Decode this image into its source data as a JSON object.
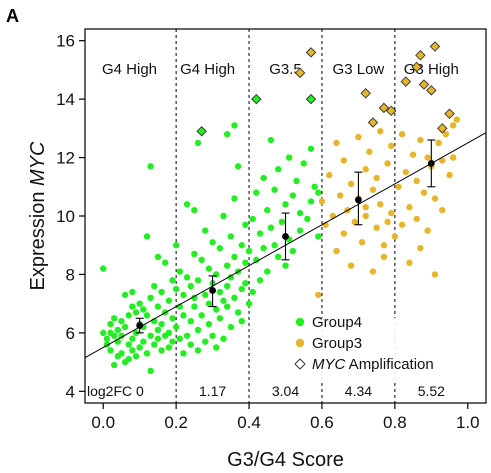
{
  "panel_label": "A",
  "chart_data": {
    "type": "scatter",
    "xlabel": "G3/G4 Score",
    "ylabel_prefix": "Expression ",
    "ylabel_gene": "MYC",
    "xlim": [
      -0.05,
      1.05
    ],
    "ylim": [
      3.6,
      16.4
    ],
    "x_ticks": [
      0.0,
      0.2,
      0.4,
      0.6,
      0.8,
      1.0
    ],
    "x_tick_labels": [
      "0.0",
      "0.2",
      "0.4",
      "0.6",
      "0.8",
      "1.0"
    ],
    "y_ticks": [
      4,
      6,
      8,
      10,
      12,
      14,
      16
    ],
    "y_tick_labels": [
      "4",
      "6",
      "8",
      "10",
      "12",
      "14",
      "16"
    ],
    "dividers": [
      0.2,
      0.4,
      0.6,
      0.8
    ],
    "regions": [
      {
        "label": "G4 High",
        "x": 0.05
      },
      {
        "label": "G4 High",
        "x": 0.2
      },
      {
        "label": "G3.5",
        "x": 0.5
      },
      {
        "label": "G3 Low",
        "x": 0.7
      },
      {
        "label": "G3 High",
        "x": 0.88
      }
    ],
    "log2fc": [
      {
        "label": "log2FC 0",
        "x": 0.1
      },
      {
        "label": "1.17",
        "x": 0.3
      },
      {
        "label": "3.04",
        "x": 0.5
      },
      {
        "label": "4.34",
        "x": 0.7
      },
      {
        "label": "5.52",
        "x": 0.9
      }
    ],
    "fit_line": {
      "x": [
        -0.05,
        1.05
      ],
      "y": [
        5.15,
        12.85
      ]
    },
    "mean_sd": [
      {
        "x": 0.1,
        "mean": 6.25,
        "lo": 6.0,
        "hi": 6.5
      },
      {
        "x": 0.3,
        "mean": 7.45,
        "lo": 6.9,
        "hi": 7.95
      },
      {
        "x": 0.5,
        "mean": 9.3,
        "lo": 8.5,
        "hi": 10.1
      },
      {
        "x": 0.7,
        "mean": 10.55,
        "lo": 9.7,
        "hi": 11.5
      },
      {
        "x": 0.9,
        "mean": 11.8,
        "lo": 11.0,
        "hi": 12.6
      }
    ],
    "legend": [
      {
        "label": "Group4",
        "color": "#22ee22",
        "kind": "dot"
      },
      {
        "label": "Group3",
        "color": "#e6b52a",
        "kind": "dot"
      },
      {
        "label_italic": "MYC",
        "label_rest": " Amplification",
        "kind": "diamond"
      }
    ],
    "series": [
      {
        "name": "Group4",
        "color": "#22ee22",
        "points": [
          [
            0.0,
            8.2
          ],
          [
            0.0,
            6.0
          ],
          [
            0.01,
            5.6
          ],
          [
            0.01,
            5.8
          ],
          [
            0.02,
            6.3
          ],
          [
            0.02,
            5.4
          ],
          [
            0.02,
            6.0
          ],
          [
            0.03,
            5.9
          ],
          [
            0.03,
            6.5
          ],
          [
            0.03,
            4.9
          ],
          [
            0.04,
            5.2
          ],
          [
            0.04,
            6.1
          ],
          [
            0.04,
            5.7
          ],
          [
            0.05,
            6.4
          ],
          [
            0.05,
            5.3
          ],
          [
            0.05,
            5.9
          ],
          [
            0.06,
            7.3
          ],
          [
            0.06,
            5.0
          ],
          [
            0.06,
            6.2
          ],
          [
            0.07,
            5.6
          ],
          [
            0.07,
            6.6
          ],
          [
            0.07,
            5.1
          ],
          [
            0.08,
            5.8
          ],
          [
            0.08,
            6.9
          ],
          [
            0.08,
            5.4
          ],
          [
            0.09,
            6.0
          ],
          [
            0.09,
            6.7
          ],
          [
            0.09,
            5.2
          ],
          [
            0.1,
            6.3
          ],
          [
            0.1,
            5.5
          ],
          [
            0.1,
            7.0
          ],
          [
            0.11,
            6.2
          ],
          [
            0.11,
            5.7
          ],
          [
            0.11,
            6.8
          ],
          [
            0.12,
            5.3
          ],
          [
            0.12,
            9.3
          ],
          [
            0.12,
            6.6
          ],
          [
            0.13,
            5.9
          ],
          [
            0.13,
            7.2
          ],
          [
            0.13,
            4.7
          ],
          [
            0.14,
            6.4
          ],
          [
            0.14,
            5.6
          ],
          [
            0.14,
            7.6
          ],
          [
            0.15,
            6.1
          ],
          [
            0.15,
            5.8
          ],
          [
            0.15,
            6.9
          ],
          [
            0.16,
            5.4
          ],
          [
            0.16,
            7.4
          ],
          [
            0.16,
            6.3
          ],
          [
            0.17,
            5.9
          ],
          [
            0.17,
            8.4
          ],
          [
            0.17,
            6.7
          ],
          [
            0.18,
            5.5
          ],
          [
            0.18,
            7.1
          ],
          [
            0.18,
            6.0
          ],
          [
            0.19,
            7.8
          ],
          [
            0.19,
            5.7
          ],
          [
            0.19,
            6.5
          ],
          [
            0.2,
            7.5
          ],
          [
            0.2,
            6.2
          ],
          [
            0.21,
            5.8
          ],
          [
            0.21,
            8.1
          ],
          [
            0.21,
            6.9
          ],
          [
            0.22,
            5.3
          ],
          [
            0.22,
            7.3
          ],
          [
            0.22,
            6.6
          ],
          [
            0.23,
            7.9
          ],
          [
            0.23,
            5.9
          ],
          [
            0.23,
            10.4
          ],
          [
            0.24,
            6.4
          ],
          [
            0.24,
            7.6
          ],
          [
            0.24,
            5.6
          ],
          [
            0.25,
            8.7
          ],
          [
            0.25,
            6.9
          ],
          [
            0.25,
            7.2
          ],
          [
            0.26,
            5.4
          ],
          [
            0.26,
            7.8
          ],
          [
            0.26,
            6.1
          ],
          [
            0.27,
            8.5
          ],
          [
            0.27,
            6.6
          ],
          [
            0.27,
            12.9
          ],
          [
            0.28,
            7.3
          ],
          [
            0.28,
            5.7
          ],
          [
            0.28,
            9.5
          ],
          [
            0.29,
            7.0
          ],
          [
            0.29,
            6.3
          ],
          [
            0.29,
            8.2
          ],
          [
            0.3,
            5.9
          ],
          [
            0.3,
            7.7
          ],
          [
            0.3,
            9.1
          ],
          [
            0.31,
            6.8
          ],
          [
            0.31,
            8.0
          ],
          [
            0.31,
            5.5
          ],
          [
            0.32,
            7.4
          ],
          [
            0.32,
            8.9
          ],
          [
            0.32,
            6.5
          ],
          [
            0.33,
            7.1
          ],
          [
            0.33,
            10.0
          ],
          [
            0.33,
            5.8
          ],
          [
            0.34,
            8.3
          ],
          [
            0.34,
            6.9
          ],
          [
            0.34,
            7.6
          ],
          [
            0.35,
            9.3
          ],
          [
            0.35,
            6.2
          ],
          [
            0.35,
            7.9
          ],
          [
            0.36,
            8.6
          ],
          [
            0.36,
            7.2
          ],
          [
            0.36,
            10.6
          ],
          [
            0.37,
            6.7
          ],
          [
            0.37,
            8.1
          ],
          [
            0.37,
            11.7
          ],
          [
            0.38,
            7.5
          ],
          [
            0.38,
            9.0
          ],
          [
            0.38,
            6.4
          ],
          [
            0.39,
            8.4
          ],
          [
            0.39,
            7.7
          ],
          [
            0.39,
            9.7
          ],
          [
            0.4,
            7.0
          ],
          [
            0.4,
            8.8
          ],
          [
            0.41,
            9.9
          ],
          [
            0.41,
            7.4
          ],
          [
            0.42,
            8.5
          ],
          [
            0.42,
            10.8
          ],
          [
            0.43,
            9.4
          ],
          [
            0.43,
            7.8
          ],
          [
            0.44,
            11.3
          ],
          [
            0.44,
            8.9
          ],
          [
            0.45,
            10.2
          ],
          [
            0.45,
            8.1
          ],
          [
            0.46,
            9.6
          ],
          [
            0.46,
            12.6
          ],
          [
            0.47,
            9.0
          ],
          [
            0.47,
            10.9
          ],
          [
            0.48,
            8.6
          ],
          [
            0.48,
            11.6
          ],
          [
            0.49,
            9.8
          ],
          [
            0.5,
            10.4
          ],
          [
            0.5,
            8.3
          ],
          [
            0.51,
            9.2
          ],
          [
            0.51,
            12.0
          ],
          [
            0.52,
            10.7
          ],
          [
            0.52,
            8.8
          ],
          [
            0.53,
            11.2
          ],
          [
            0.54,
            9.5
          ],
          [
            0.54,
            10.1
          ],
          [
            0.55,
            11.8
          ],
          [
            0.56,
            9.9
          ],
          [
            0.57,
            10.5
          ],
          [
            0.57,
            12.3
          ],
          [
            0.58,
            11.0
          ],
          [
            0.59,
            9.3
          ],
          [
            0.59,
            10.8
          ],
          [
            0.26,
            12.5
          ],
          [
            0.34,
            12.8
          ],
          [
            0.36,
            13.1
          ],
          [
            0.13,
            11.7
          ],
          [
            0.08,
            7.4
          ],
          [
            0.2,
            9.0
          ],
          [
            0.15,
            8.6
          ],
          [
            0.25,
            10.2
          ]
        ]
      },
      {
        "name": "Group3",
        "color": "#e6b52a",
        "points": [
          [
            0.59,
            7.3
          ],
          [
            0.6,
            10.5
          ],
          [
            0.61,
            9.7
          ],
          [
            0.62,
            11.4
          ],
          [
            0.63,
            10.0
          ],
          [
            0.64,
            12.5
          ],
          [
            0.64,
            8.8
          ],
          [
            0.65,
            10.7
          ],
          [
            0.66,
            9.4
          ],
          [
            0.66,
            11.9
          ],
          [
            0.67,
            10.2
          ],
          [
            0.68,
            8.3
          ],
          [
            0.68,
            11.1
          ],
          [
            0.69,
            9.8
          ],
          [
            0.7,
            12.7
          ],
          [
            0.7,
            10.6
          ],
          [
            0.71,
            9.1
          ],
          [
            0.72,
            11.6
          ],
          [
            0.72,
            10.0
          ],
          [
            0.73,
            12.2
          ],
          [
            0.74,
            8.1
          ],
          [
            0.74,
            10.9
          ],
          [
            0.75,
            9.6
          ],
          [
            0.75,
            11.3
          ],
          [
            0.76,
            10.4
          ],
          [
            0.76,
            12.9
          ],
          [
            0.77,
            9.0
          ],
          [
            0.77,
            8.6
          ],
          [
            0.78,
            11.8
          ],
          [
            0.79,
            10.1
          ],
          [
            0.79,
            12.4
          ],
          [
            0.8,
            9.3
          ],
          [
            0.81,
            11.0
          ],
          [
            0.82,
            12.8
          ],
          [
            0.82,
            9.7
          ],
          [
            0.83,
            11.5
          ],
          [
            0.84,
            10.3
          ],
          [
            0.84,
            8.4
          ],
          [
            0.85,
            12.1
          ],
          [
            0.86,
            11.2
          ],
          [
            0.86,
            9.9
          ],
          [
            0.87,
            12.6
          ],
          [
            0.87,
            8.9
          ],
          [
            0.88,
            10.8
          ],
          [
            0.89,
            12.0
          ],
          [
            0.89,
            9.5
          ],
          [
            0.9,
            11.7
          ],
          [
            0.91,
            8.0
          ],
          [
            0.91,
            10.6
          ],
          [
            0.92,
            12.5
          ],
          [
            0.93,
            11.9
          ],
          [
            0.93,
            10.2
          ],
          [
            0.94,
            12.8
          ],
          [
            0.95,
            11.4
          ],
          [
            0.96,
            13.1
          ],
          [
            0.96,
            12.0
          ],
          [
            0.97,
            13.3
          ],
          [
            0.72,
            10.3
          ],
          [
            0.78,
            9.8
          ]
        ]
      }
    ],
    "amplified": [
      {
        "x": 0.27,
        "y": 12.9,
        "color": "#22ee22"
      },
      {
        "x": 0.42,
        "y": 14.0,
        "color": "#22ee22"
      },
      {
        "x": 0.57,
        "y": 14.0,
        "color": "#22ee22"
      },
      {
        "x": 0.54,
        "y": 14.9,
        "color": "#e6b52a"
      },
      {
        "x": 0.57,
        "y": 15.6,
        "color": "#e6b52a"
      },
      {
        "x": 0.72,
        "y": 14.2,
        "color": "#e6b52a"
      },
      {
        "x": 0.74,
        "y": 13.2,
        "color": "#e6b52a"
      },
      {
        "x": 0.77,
        "y": 13.7,
        "color": "#e6b52a"
      },
      {
        "x": 0.79,
        "y": 13.6,
        "color": "#e6b52a"
      },
      {
        "x": 0.83,
        "y": 14.6,
        "color": "#e6b52a"
      },
      {
        "x": 0.86,
        "y": 15.1,
        "color": "#e6b52a"
      },
      {
        "x": 0.87,
        "y": 15.5,
        "color": "#e6b52a"
      },
      {
        "x": 0.88,
        "y": 14.5,
        "color": "#e6b52a"
      },
      {
        "x": 0.9,
        "y": 14.3,
        "color": "#e6b52a"
      },
      {
        "x": 0.91,
        "y": 15.8,
        "color": "#e6b52a"
      },
      {
        "x": 0.93,
        "y": 13.0,
        "color": "#e6b52a"
      },
      {
        "x": 0.95,
        "y": 13.5,
        "color": "#e6b52a"
      }
    ]
  }
}
